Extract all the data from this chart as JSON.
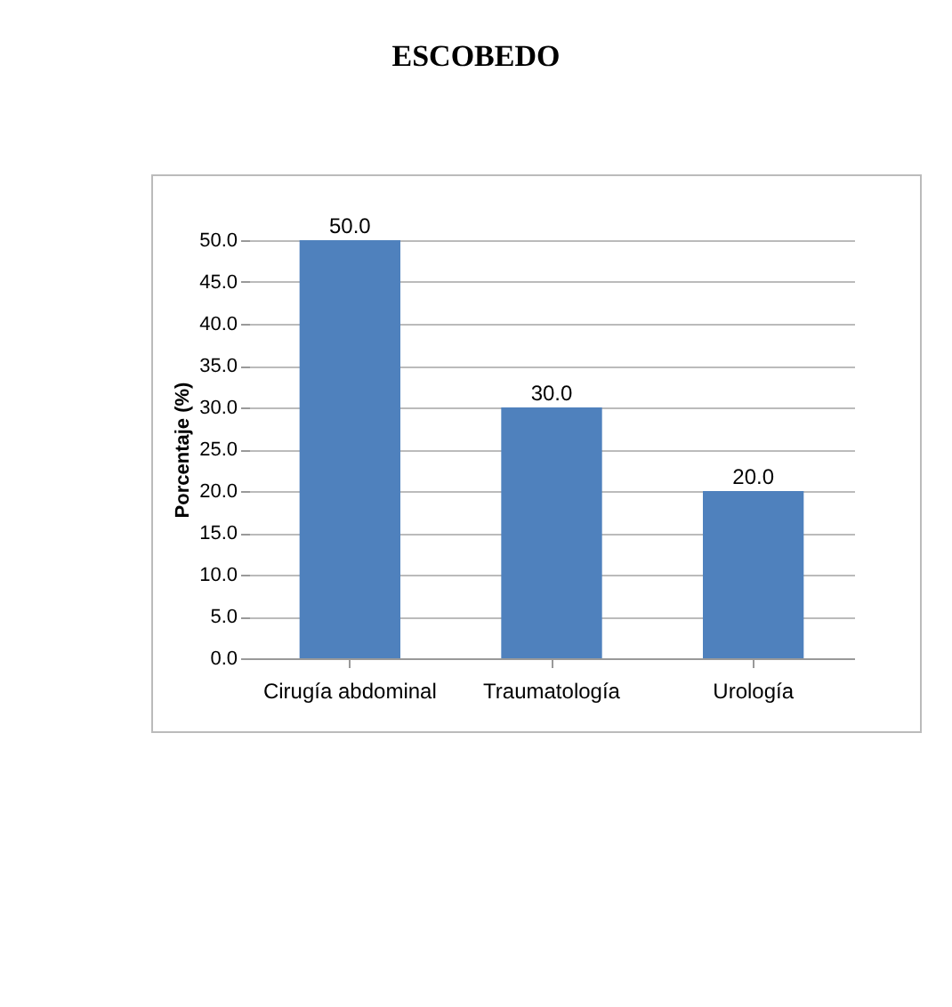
{
  "chart_data": {
    "type": "bar",
    "title": "ESCOBEDO",
    "ylabel": "Porcentaje (%)",
    "categories": [
      "Cirugía abdominal",
      "Traumatología",
      "Urología"
    ],
    "values": [
      50,
      30,
      20
    ],
    "color": "#4f81bd",
    "value_labels": [
      "50.0",
      "30.0",
      "20.0"
    ],
    "ylim": [
      0,
      50
    ],
    "yticks": [
      {
        "value": 0,
        "label": "0.0"
      },
      {
        "value": 5,
        "label": "5.0"
      },
      {
        "value": 10,
        "label": "10.0"
      },
      {
        "value": 15,
        "label": "15.0"
      },
      {
        "value": 20,
        "label": "20.0"
      },
      {
        "value": 25,
        "label": "25.0"
      },
      {
        "value": 30,
        "label": "30.0"
      },
      {
        "value": 35,
        "label": "35.0"
      },
      {
        "value": 40,
        "label": "40.0"
      },
      {
        "value": 45,
        "label": "45.0"
      },
      {
        "value": 50,
        "label": "50.0"
      }
    ],
    "grid": "y"
  }
}
